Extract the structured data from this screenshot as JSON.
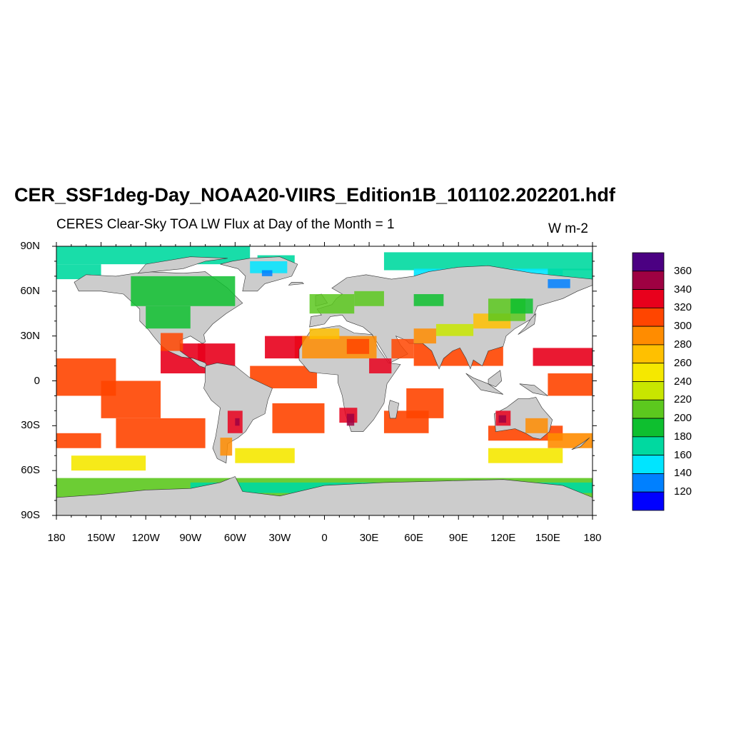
{
  "title": "CER_SSF1deg-Day_NOAA20-VIIRS_Edition1B_101102.202201.hdf",
  "subtitle": "CERES Clear-Sky TOA LW Flux at Day of the Month = 1",
  "units": "W m-2",
  "lat_ticks": [
    "90N",
    "60N",
    "30N",
    "0",
    "30S",
    "60S",
    "90S"
  ],
  "lon_ticks": [
    "180",
    "150W",
    "120W",
    "90W",
    "60W",
    "30W",
    "0",
    "30E",
    "60E",
    "90E",
    "120E",
    "150E",
    "180"
  ],
  "colorbar": {
    "labels": [
      "360",
      "340",
      "320",
      "300",
      "280",
      "260",
      "240",
      "220",
      "200",
      "180",
      "160",
      "140",
      "120"
    ],
    "colors": [
      "#4b0082",
      "#9e0142",
      "#e8001c",
      "#ff4500",
      "#ff8c00",
      "#ffc000",
      "#f5e800",
      "#c8e600",
      "#5cc81e",
      "#0ebf2f",
      "#00d9a0",
      "#00e5ff",
      "#0080ff",
      "#0000ff"
    ]
  },
  "map": {
    "land_color": "#cccccc",
    "ocean_color": "#ffffff",
    "lon_range": [
      -180,
      180
    ],
    "lat_range": [
      -90,
      90
    ]
  }
}
